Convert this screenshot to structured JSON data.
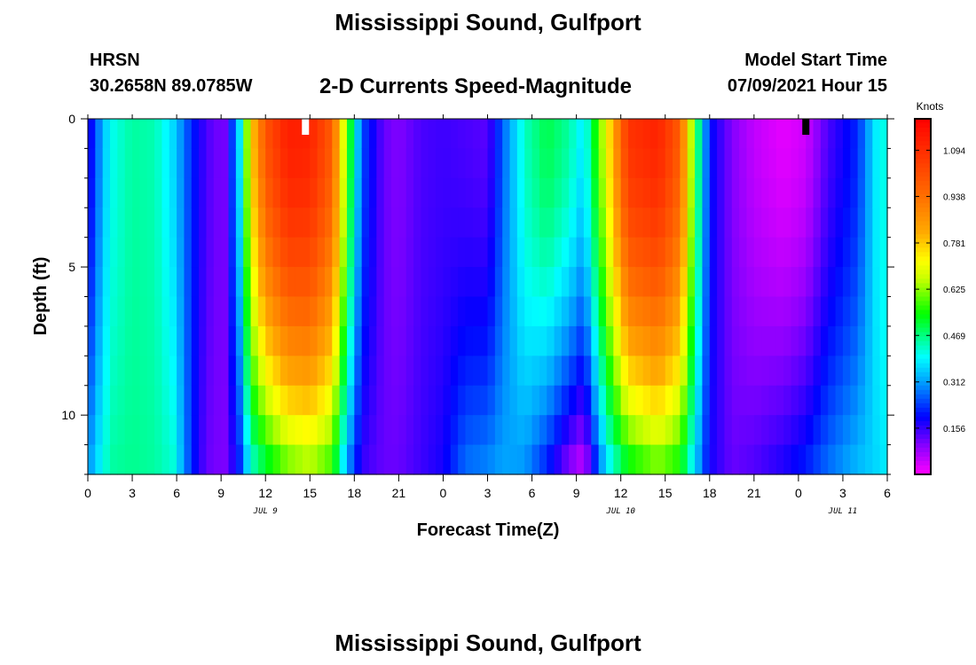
{
  "header": {
    "title": "Mississippi Sound, Gulfport",
    "station": "HRSN",
    "coordinates": "30.2658N  89.0785W",
    "subtitle": "2-D Currents Speed-Magnitude",
    "model_start_label": "Model Start Time",
    "model_start_value": "07/09/2021 Hour 15"
  },
  "footer": {
    "title": "Mississippi Sound, Gulfport"
  },
  "chart_data": {
    "type": "heatmap",
    "xlabel": "Forecast Time(Z)",
    "ylabel": "Depth (ft)",
    "x_range_hours": [
      0,
      54
    ],
    "x_start": "07/09/2021 00Z",
    "x_ticks": [
      "0",
      "3",
      "6",
      "9",
      "12",
      "15",
      "18",
      "21",
      "0",
      "3",
      "6",
      "9",
      "12",
      "15",
      "18",
      "21",
      "0",
      "3",
      "6"
    ],
    "date_labels": [
      {
        "label": "JUL 9",
        "x_hour": 12
      },
      {
        "label": "JUL 10",
        "x_hour": 36
      },
      {
        "label": "JUL 11",
        "x_hour": 51
      }
    ],
    "y_ticks": [
      "0",
      "5",
      "10"
    ],
    "y_tick_values": [
      0,
      5,
      10
    ],
    "ylim": [
      0,
      12
    ],
    "y_inverted": true,
    "colorbar": {
      "label": "Knots",
      "ticks": [
        "1.094",
        "0.938",
        "0.781",
        "0.625",
        "0.469",
        "0.312",
        "0.156"
      ],
      "tick_values": [
        1.094,
        0.938,
        0.781,
        0.625,
        0.469,
        0.312,
        0.156
      ],
      "range": [
        0.0,
        1.2
      ]
    },
    "markers": [
      {
        "color": "#ffffff",
        "x_hour": 14.7
      },
      {
        "color": "#000000",
        "x_hour": 48.5
      }
    ],
    "depth_levels_ft": [
      0,
      1,
      2,
      3,
      4,
      5,
      6,
      7,
      8,
      9,
      10,
      11,
      12
    ],
    "surface_speed_knots": [
      [
        0,
        0.15
      ],
      [
        0.5,
        0.25
      ],
      [
        1.5,
        0.4
      ],
      [
        3,
        0.45
      ],
      [
        4.5,
        0.44
      ],
      [
        5.8,
        0.36
      ],
      [
        7,
        0.22
      ],
      [
        8,
        0.14
      ],
      [
        9.2,
        0.1
      ],
      [
        10.2,
        0.35
      ],
      [
        11,
        0.75
      ],
      [
        12,
        1.0
      ],
      [
        13.5,
        1.13
      ],
      [
        15,
        1.12
      ],
      [
        16.5,
        0.98
      ],
      [
        17.5,
        0.6
      ],
      [
        18.5,
        0.25
      ],
      [
        20,
        0.12
      ],
      [
        21,
        0.1
      ],
      [
        22.5,
        0.14
      ],
      [
        24,
        0.15
      ],
      [
        25.5,
        0.14
      ],
      [
        27,
        0.13
      ],
      [
        28,
        0.26
      ],
      [
        29.5,
        0.43
      ],
      [
        31,
        0.5
      ],
      [
        32.5,
        0.45
      ],
      [
        33.5,
        0.37
      ],
      [
        35,
        0.7
      ],
      [
        36.5,
        1.08
      ],
      [
        38.5,
        1.12
      ],
      [
        40,
        0.98
      ],
      [
        41,
        0.55
      ],
      [
        42,
        0.2
      ],
      [
        43.5,
        0.1
      ],
      [
        45,
        0.05
      ],
      [
        47,
        0.02
      ],
      [
        48.5,
        0.04
      ],
      [
        50,
        0.14
      ],
      [
        52,
        0.22
      ],
      [
        53.2,
        0.38
      ],
      [
        54,
        0.42
      ]
    ],
    "bottom_speed_knots": [
      [
        0,
        0.3
      ],
      [
        0.5,
        0.36
      ],
      [
        1.5,
        0.45
      ],
      [
        3,
        0.46
      ],
      [
        4.5,
        0.45
      ],
      [
        5.8,
        0.42
      ],
      [
        7,
        0.22
      ],
      [
        8,
        0.12
      ],
      [
        9.2,
        0.1
      ],
      [
        10.2,
        0.2
      ],
      [
        11,
        0.4
      ],
      [
        12,
        0.48
      ],
      [
        13.5,
        0.58
      ],
      [
        15,
        0.62
      ],
      [
        16.5,
        0.55
      ],
      [
        17.5,
        0.3
      ],
      [
        18.5,
        0.15
      ],
      [
        20,
        0.12
      ],
      [
        21,
        0.12
      ],
      [
        22.5,
        0.15
      ],
      [
        24,
        0.18
      ],
      [
        25.5,
        0.28
      ],
      [
        27,
        0.3
      ],
      [
        28,
        0.32
      ],
      [
        29.5,
        0.3
      ],
      [
        31,
        0.2
      ],
      [
        32.5,
        0.08
      ],
      [
        33.5,
        0.03
      ],
      [
        35,
        0.35
      ],
      [
        36.5,
        0.5
      ],
      [
        38.5,
        0.58
      ],
      [
        40,
        0.52
      ],
      [
        41,
        0.35
      ],
      [
        42,
        0.18
      ],
      [
        43.5,
        0.12
      ],
      [
        45,
        0.14
      ],
      [
        47,
        0.18
      ],
      [
        48.5,
        0.22
      ],
      [
        50,
        0.28
      ],
      [
        52,
        0.34
      ],
      [
        53.2,
        0.36
      ],
      [
        54,
        0.38
      ]
    ]
  }
}
